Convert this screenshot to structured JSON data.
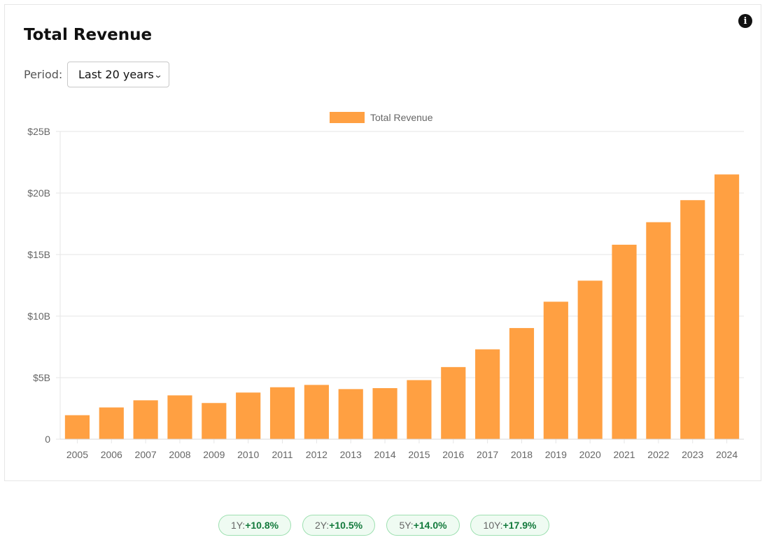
{
  "card": {
    "title": "Total Revenue",
    "info_icon": "info-icon",
    "period_label": "Period:",
    "period_selected": "Last 20 years"
  },
  "colors": {
    "bar": "#ffa042",
    "grid": "#e6e6e6",
    "axis_text": "#666666",
    "growth_bg": "#effbf2",
    "growth_border": "#9ee0b1",
    "growth_value": "#137a3c"
  },
  "chart_data": {
    "type": "bar",
    "title": "",
    "xlabel": "",
    "ylabel": "",
    "legend": {
      "position": "top-center"
    },
    "grid": true,
    "categories": [
      "2005",
      "2006",
      "2007",
      "2008",
      "2009",
      "2010",
      "2011",
      "2012",
      "2013",
      "2014",
      "2015",
      "2016",
      "2017",
      "2018",
      "2019",
      "2020",
      "2021",
      "2022",
      "2023",
      "2024"
    ],
    "series": [
      {
        "name": "Total Revenue",
        "values": [
          1.95,
          2.58,
          3.16,
          3.56,
          2.94,
          3.79,
          4.22,
          4.41,
          4.07,
          4.15,
          4.8,
          5.86,
          7.3,
          9.03,
          11.17,
          12.88,
          15.8,
          17.63,
          19.42,
          21.51
        ]
      }
    ],
    "value_unit": "billions USD",
    "ylim": [
      0,
      25
    ],
    "yticks": [
      0,
      5,
      10,
      15,
      20,
      25
    ],
    "ytick_labels": [
      "0",
      "$5B",
      "$10B",
      "$15B",
      "$20B",
      "$25B"
    ]
  },
  "growth": [
    {
      "label": "1Y:",
      "value": "+10.8%"
    },
    {
      "label": "2Y:",
      "value": "+10.5%"
    },
    {
      "label": "5Y:",
      "value": "+14.0%"
    },
    {
      "label": "10Y:",
      "value": "+17.9%"
    }
  ]
}
